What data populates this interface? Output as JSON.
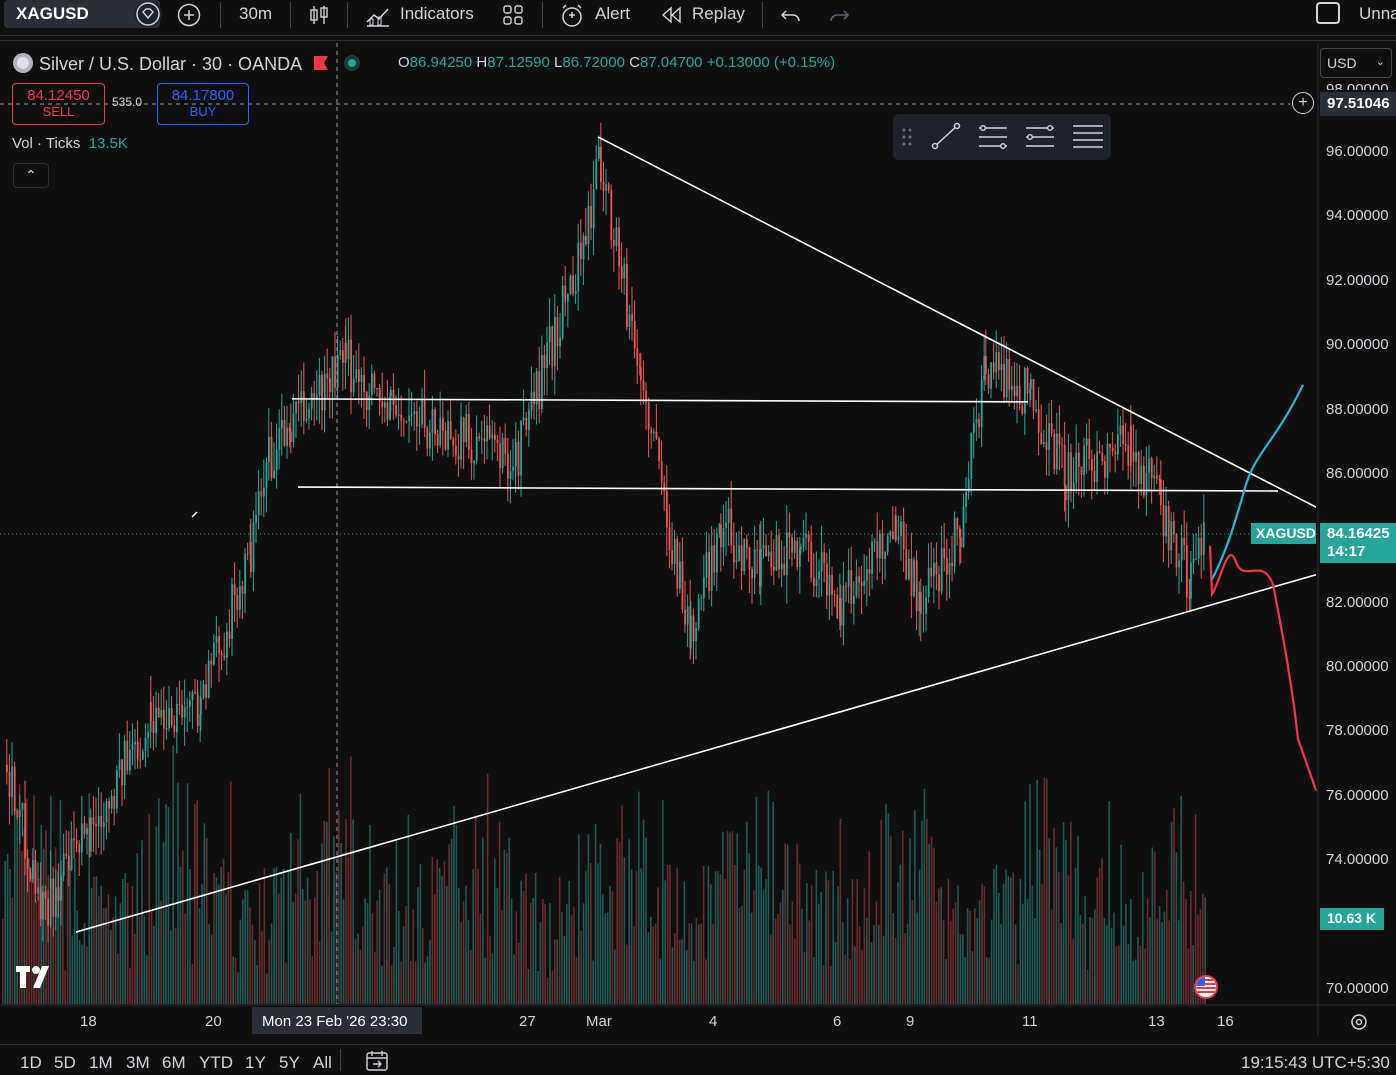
{
  "toolbar": {
    "symbol": "XAGUSD",
    "interval": "30m",
    "indicators_label": "Indicators",
    "alert_label": "Alert",
    "replay_label": "Replay",
    "layout_name": "Unna"
  },
  "legend": {
    "title": "Silver / U.S. Dollar · 30 · OANDA",
    "open_label": "O",
    "open": "86.94250",
    "high_label": "H",
    "high": "87.12590",
    "low_label": "L",
    "low": "86.72000",
    "close_label": "C",
    "close": "87.04700",
    "change": "+0.13000 (+0.15%)",
    "sell_price": "84.12450",
    "sell_label": "SELL",
    "spread": "535.0",
    "buy_price": "84.17800",
    "buy_label": "BUY",
    "vol_label": "Vol · Ticks",
    "vol_value": "13.5K",
    "collapse_glyph": "⌃"
  },
  "price_axis": {
    "currency": "USD",
    "crosshair_price": "97.51046",
    "cropped_top_label": "98.00000",
    "labels": [
      "96.00000",
      "94.00000",
      "92.00000",
      "90.00000",
      "88.00000",
      "86.00000",
      "82.00000",
      "80.00000",
      "78.00000",
      "76.00000",
      "74.00000",
      "70.00000"
    ],
    "symbol_tag": "XAGUSD",
    "last_price": "84.16425",
    "countdown": "14:17",
    "volume_tag": "10.63 K"
  },
  "time_axis": {
    "labels": [
      "18",
      "20",
      "27",
      "Mar",
      "4",
      "6",
      "9",
      "11",
      "13",
      "16"
    ],
    "crosshair_time": "Mon 23 Feb '26   23:30"
  },
  "bottom": {
    "ranges": [
      "1D",
      "5D",
      "1M",
      "3M",
      "6M",
      "YTD",
      "1Y",
      "5Y",
      "All"
    ],
    "clock": "19:15:43 UTC+5:30"
  },
  "colors": {
    "up": "#26a69a",
    "down": "#ef5350",
    "background": "#0f0f0f",
    "projection_up": "#29b6d6",
    "projection_down": "#f23645"
  },
  "icons": [
    "diamond-icon",
    "plus-circle-icon",
    "candles-icon",
    "indicators-icon",
    "templates-icon",
    "alert-icon",
    "replay-icon",
    "undo-icon",
    "redo-icon",
    "trendline-icon",
    "settings-gear-icon",
    "calendar-range-icon",
    "us-flag-icon",
    "tradingview-logo"
  ],
  "chart_data": {
    "type": "candlestick",
    "symbol": "XAGUSD",
    "interval": "30",
    "ylim": [
      69.5,
      98.2
    ],
    "x": [
      "18",
      "20",
      "Mon 23 Feb '26",
      "27",
      "Mar",
      "4",
      "6",
      "9",
      "11",
      "13",
      "16"
    ],
    "price_path": [
      {
        "t": "18",
        "price": 77.0
      },
      {
        "t": "18",
        "price": 72.5
      },
      {
        "t": "18",
        "price": 75.0
      },
      {
        "t": "20",
        "price": 78.5
      },
      {
        "t": "20",
        "price": 79.0
      },
      {
        "t": "Mon 23 Feb '26",
        "price": 83.5
      },
      {
        "t": "Mon 23 Feb '26",
        "price": 86.5
      },
      {
        "t": "Mon 23 Feb '26",
        "price": 87.5
      },
      {
        "t": "27",
        "price": 89.5
      },
      {
        "t": "27",
        "price": 88.0
      },
      {
        "t": "27",
        "price": 86.5
      },
      {
        "t": "Mar",
        "price": 93.5
      },
      {
        "t": "Mar",
        "price": 95.8
      },
      {
        "t": "Mar",
        "price": 89.0
      },
      {
        "t": "4",
        "price": 81.0
      },
      {
        "t": "4",
        "price": 84.5
      },
      {
        "t": "4",
        "price": 83.0
      },
      {
        "t": "6",
        "price": 84.0
      },
      {
        "t": "6",
        "price": 82.0
      },
      {
        "t": "6",
        "price": 84.5
      },
      {
        "t": "9",
        "price": 82.0
      },
      {
        "t": "9",
        "price": 84.5
      },
      {
        "t": "11",
        "price": 89.5
      },
      {
        "t": "11",
        "price": 88.5
      },
      {
        "t": "11",
        "price": 86.0
      },
      {
        "t": "13",
        "price": 87.0
      },
      {
        "t": "13",
        "price": 85.0
      },
      {
        "t": "13",
        "price": 82.5
      },
      {
        "t": "16",
        "price": 84.16
      }
    ],
    "trendlines": [
      {
        "kind": "descending resistance",
        "from": {
          "t": "Mar",
          "price": 96.5
        },
        "to": {
          "t": "16",
          "price": 85.0
        }
      },
      {
        "kind": "ascending support",
        "from": {
          "t": "18",
          "price": 71.8
        },
        "to": {
          "t": "16",
          "price": 82.9
        }
      },
      {
        "kind": "horizontal",
        "price": 88.3
      },
      {
        "kind": "horizontal",
        "price": 85.5
      }
    ],
    "projections": [
      {
        "kind": "up",
        "color": "#29b6d6",
        "target_price": 88.8
      },
      {
        "kind": "down",
        "color": "#f23645",
        "target_price": 76.2
      }
    ],
    "volume_last": "10.63 K"
  }
}
